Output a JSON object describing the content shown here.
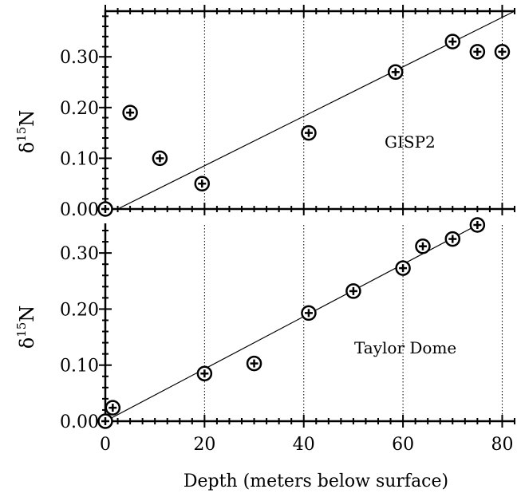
{
  "chart_data": [
    {
      "type": "scatter",
      "panel_label": "GISP2",
      "ylabel_symbol": "δ",
      "ylabel_sup": "15",
      "ylabel_tail": "N",
      "xlim": [
        0,
        82.5
      ],
      "ylim": [
        0.0,
        0.39
      ],
      "x_ticks": [
        0,
        20,
        40,
        60,
        80
      ],
      "y_ticks": [
        0.0,
        0.1,
        0.2,
        0.3
      ],
      "y_tick_labels": [
        "0.00",
        "0.10",
        "0.20",
        "0.30"
      ],
      "grid": "vertical dotted at x ticks",
      "points": [
        {
          "x": 0,
          "y": 0.0
        },
        {
          "x": 5,
          "y": 0.19
        },
        {
          "x": 11,
          "y": 0.1
        },
        {
          "x": 19.5,
          "y": 0.05
        },
        {
          "x": 41,
          "y": 0.15
        },
        {
          "x": 58.5,
          "y": 0.27
        },
        {
          "x": 70,
          "y": 0.33
        },
        {
          "x": 75,
          "y": 0.31
        },
        {
          "x": 80,
          "y": 0.31
        }
      ],
      "fit_line": {
        "x": [
          2.5,
          82.5
        ],
        "y": [
          0.0,
          0.39
        ]
      }
    },
    {
      "type": "scatter",
      "panel_label": "Taylor Dome",
      "ylabel_symbol": "δ",
      "ylabel_sup": "15",
      "ylabel_tail": "N",
      "xlim": [
        0,
        82.5
      ],
      "ylim": [
        0.0,
        0.35
      ],
      "x_ticks": [
        0,
        20,
        40,
        60,
        80
      ],
      "x_tick_labels": [
        "0",
        "20",
        "40",
        "60",
        "80"
      ],
      "y_ticks": [
        0.0,
        0.1,
        0.2,
        0.3
      ],
      "y_tick_labels": [
        "0.00",
        "0.10",
        "0.20",
        "0.30"
      ],
      "xlabel": "Depth (meters below surface)",
      "grid": "vertical dotted at x ticks",
      "points": [
        {
          "x": 0,
          "y": 0.0
        },
        {
          "x": 1.5,
          "y": 0.024
        },
        {
          "x": 20,
          "y": 0.085
        },
        {
          "x": 30,
          "y": 0.103
        },
        {
          "x": 41,
          "y": 0.193
        },
        {
          "x": 50,
          "y": 0.232
        },
        {
          "x": 60,
          "y": 0.273
        },
        {
          "x": 64,
          "y": 0.312
        },
        {
          "x": 70,
          "y": 0.325
        },
        {
          "x": 75,
          "y": 0.35
        }
      ],
      "fit_line": {
        "x": [
          0,
          75
        ],
        "y": [
          0.0,
          0.35
        ]
      }
    }
  ]
}
